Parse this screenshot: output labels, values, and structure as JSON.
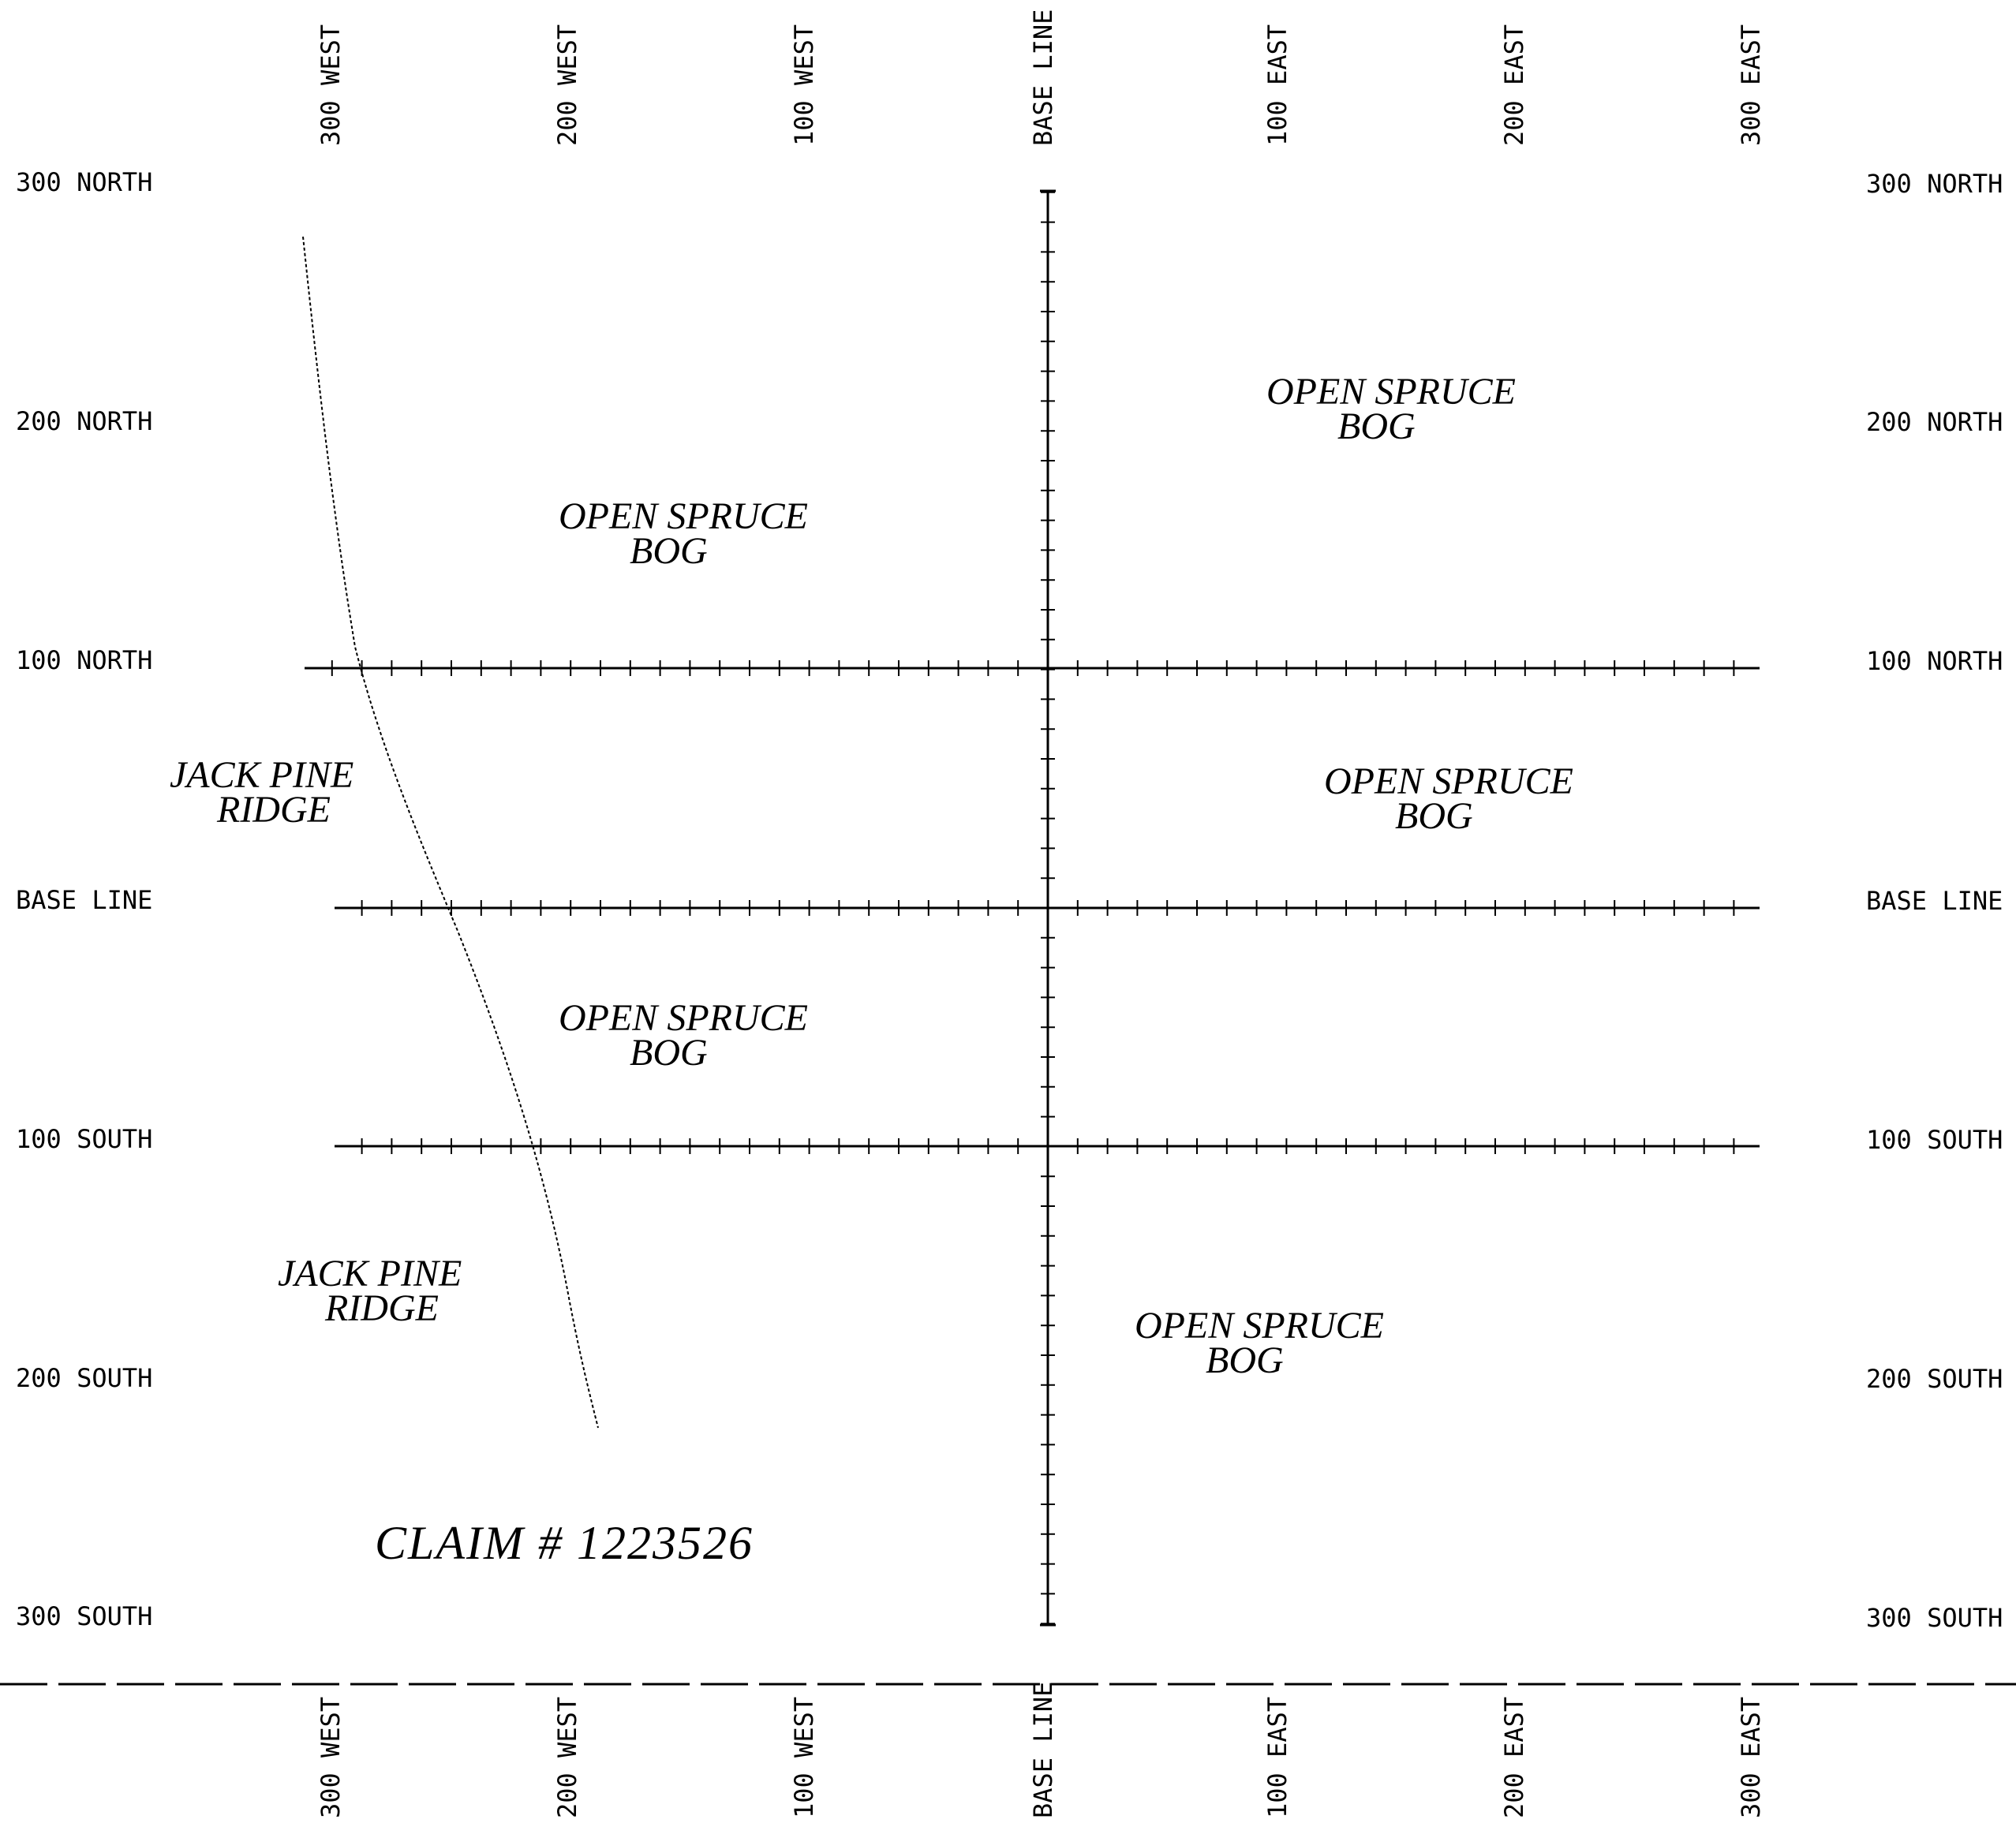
{
  "column_labels": [
    "300 WEST",
    "200 WEST",
    "100 WEST",
    "BASE LINE",
    "100 EAST",
    "200 EAST",
    "300 EAST"
  ],
  "row_labels": [
    "300 NORTH",
    "200 NORTH",
    "100 NORTH",
    "BASE LINE",
    "100 SOUTH",
    "200 SOUTH",
    "300 SOUTH"
  ],
  "areas": [
    {
      "line1": "OPEN SPRUCE",
      "line2": "BOG"
    },
    {
      "line1": "OPEN SPRUCE",
      "line2": "BOG"
    },
    {
      "line1": "JACK PINE",
      "line2": "RIDGE"
    },
    {
      "line1": "OPEN SPRUCE",
      "line2": "BOG"
    },
    {
      "line1": "OPEN SPRUCE",
      "line2": "BOG"
    },
    {
      "line1": "JACK PINE",
      "line2": "RIDGE"
    },
    {
      "line1": "OPEN SPRUCE",
      "line2": "BOG"
    }
  ],
  "claim": {
    "text": "CLAIM # 1223526"
  },
  "colors": {
    "ink": "#000000",
    "paper": "#ffffff"
  }
}
